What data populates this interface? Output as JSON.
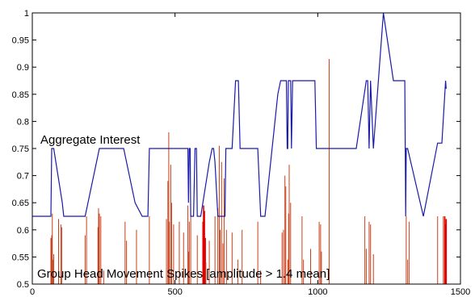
{
  "chart_data": {
    "type": "line",
    "xlim": [
      0,
      1500
    ],
    "ylim": [
      0.5,
      1
    ],
    "x_ticks": [
      "0",
      "500",
      "1000",
      "1500"
    ],
    "y_ticks": [
      "0.5",
      "0.55",
      "0.6",
      "0.65",
      "0.7",
      "0.75",
      "0.8",
      "0.85",
      "0.9",
      "0.95",
      "1"
    ],
    "annotations": [
      {
        "text": "Aggregate Interest"
      },
      {
        "text": "Group Head Movement Spikes [amplitude > 1.4 mean]"
      }
    ],
    "interest_color": "#1a1aa8",
    "spike_color": "#c8401a",
    "spike_color_strong": "#e00000",
    "grid": false,
    "series": [
      {
        "type": "line",
        "points": [
          [
            0,
            0.625
          ],
          [
            65,
            0.625
          ],
          [
            68,
            0.75
          ],
          [
            75,
            0.75
          ],
          [
            105,
            0.65
          ],
          [
            110,
            0.625
          ],
          [
            185,
            0.625
          ],
          [
            235,
            0.75
          ],
          [
            240,
            0.75
          ],
          [
            320,
            0.75
          ],
          [
            360,
            0.65
          ],
          [
            385,
            0.625
          ],
          [
            405,
            0.625
          ],
          [
            410,
            0.75
          ],
          [
            545,
            0.75
          ],
          [
            547,
            0.65
          ],
          [
            550,
            0.75
          ],
          [
            553,
            0.75
          ],
          [
            555,
            0.625
          ],
          [
            565,
            0.625
          ],
          [
            570,
            0.75
          ],
          [
            575,
            0.75
          ],
          [
            578,
            0.625
          ],
          [
            590,
            0.625
          ],
          [
            620,
            0.725
          ],
          [
            630,
            0.75
          ],
          [
            635,
            0.75
          ],
          [
            640,
            0.725
          ],
          [
            650,
            0.625
          ],
          [
            675,
            0.625
          ],
          [
            678,
            0.75
          ],
          [
            700,
            0.75
          ],
          [
            712,
            0.875
          ],
          [
            722,
            0.875
          ],
          [
            728,
            0.75
          ],
          [
            790,
            0.75
          ],
          [
            800,
            0.625
          ],
          [
            815,
            0.625
          ],
          [
            860,
            0.85
          ],
          [
            870,
            0.875
          ],
          [
            890,
            0.875
          ],
          [
            893,
            0.75
          ],
          [
            895,
            0.75
          ],
          [
            897,
            0.875
          ],
          [
            905,
            0.875
          ],
          [
            908,
            0.75
          ],
          [
            912,
            0.875
          ],
          [
            990,
            0.875
          ],
          [
            995,
            0.75
          ],
          [
            1135,
            0.75
          ],
          [
            1170,
            0.875
          ],
          [
            1175,
            0.875
          ],
          [
            1180,
            0.75
          ],
          [
            1185,
            0.875
          ],
          [
            1195,
            0.75
          ],
          [
            1230,
            1
          ],
          [
            1265,
            0.875
          ],
          [
            1305,
            0.875
          ],
          [
            1308,
            0.625
          ],
          [
            1310,
            0.75
          ],
          [
            1315,
            0.75
          ],
          [
            1370,
            0.625
          ],
          [
            1420,
            0.76
          ],
          [
            1435,
            0.76
          ],
          [
            1448,
            0.875
          ],
          [
            1450,
            0.86
          ]
        ]
      },
      {
        "type": "stem",
        "baseline": 0.5,
        "points": [
          [
            65,
            0.585
          ],
          [
            68,
            0.59
          ],
          [
            70,
            0.63
          ],
          [
            73,
            0.545
          ],
          [
            75,
            0.555
          ],
          [
            92,
            0.62
          ],
          [
            100,
            0.61
          ],
          [
            103,
            0.605
          ],
          [
            185,
            0.59
          ],
          [
            190,
            0.625
          ],
          [
            230,
            0.605
          ],
          [
            232,
            0.64
          ],
          [
            235,
            0.63
          ],
          [
            240,
            0.625
          ],
          [
            250,
            0.525
          ],
          [
            325,
            0.615
          ],
          [
            330,
            0.58
          ],
          [
            365,
            0.6
          ],
          [
            410,
            0.625
          ],
          [
            470,
            0.62
          ],
          [
            475,
            0.69
          ],
          [
            478,
            0.78
          ],
          [
            480,
            0.615
          ],
          [
            485,
            0.72
          ],
          [
            488,
            0.65
          ],
          [
            495,
            0.61
          ],
          [
            515,
            0.615
          ],
          [
            530,
            0.595
          ],
          [
            545,
            0.645
          ],
          [
            548,
            0.56
          ],
          [
            550,
            0.615
          ],
          [
            555,
            0.63
          ],
          [
            578,
            0.59
          ],
          [
            598,
            0.615
          ],
          [
            600,
            0.645
          ],
          [
            603,
            0.635
          ],
          [
            606,
            0.585
          ],
          [
            608,
            0.54
          ],
          [
            620,
            0.58
          ],
          [
            640,
            0.625
          ],
          [
            650,
            0.64
          ],
          [
            655,
            0.755
          ],
          [
            658,
            0.6
          ],
          [
            663,
            0.725
          ],
          [
            668,
            0.575
          ],
          [
            672,
            0.695
          ],
          [
            680,
            0.6
          ],
          [
            700,
            0.595
          ],
          [
            720,
            0.545
          ],
          [
            735,
            0.6
          ],
          [
            790,
            0.615
          ],
          [
            800,
            0.525
          ],
          [
            875,
            0.595
          ],
          [
            880,
            0.6
          ],
          [
            885,
            0.7
          ],
          [
            888,
            0.68
          ],
          [
            895,
            0.545
          ],
          [
            898,
            0.63
          ],
          [
            900,
            0.72
          ],
          [
            905,
            0.65
          ],
          [
            945,
            0.625
          ],
          [
            950,
            0.545
          ],
          [
            975,
            0.565
          ],
          [
            1005,
            0.615
          ],
          [
            1010,
            0.61
          ],
          [
            1013,
            0.56
          ],
          [
            1040,
            0.915
          ],
          [
            1165,
            0.625
          ],
          [
            1170,
            0.565
          ],
          [
            1180,
            0.615
          ],
          [
            1185,
            0.61
          ],
          [
            1195,
            0.555
          ],
          [
            1310,
            0.625
          ],
          [
            1315,
            0.545
          ],
          [
            1320,
            0.615
          ],
          [
            1420,
            0.625
          ],
          [
            1440,
            0.625
          ],
          [
            1445,
            0.625
          ],
          [
            1447,
            0.61
          ],
          [
            1449,
            0.605
          ],
          [
            1450,
            0.62
          ]
        ]
      }
    ]
  }
}
